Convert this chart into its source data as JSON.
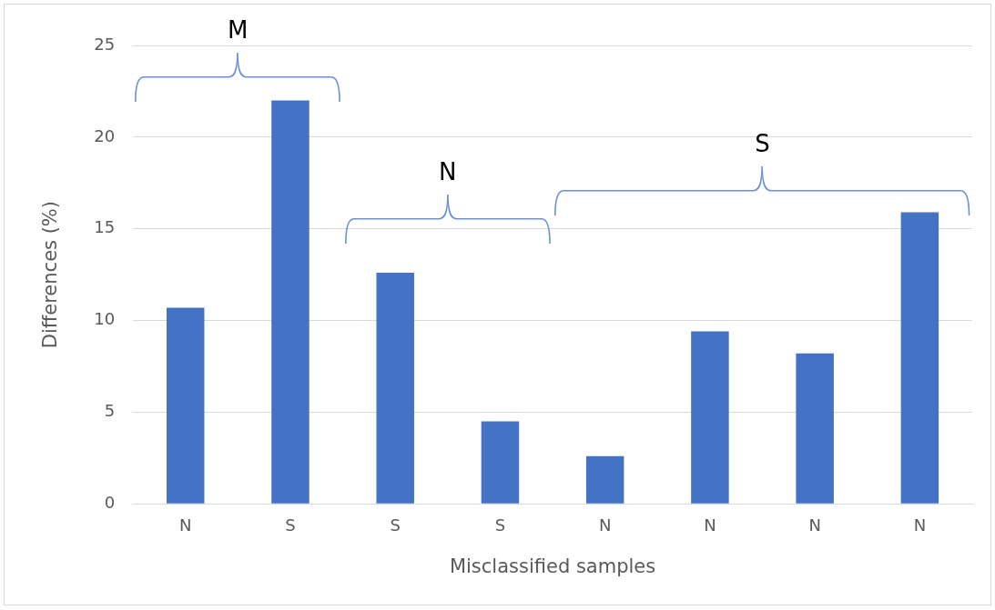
{
  "chart_data": {
    "type": "bar",
    "xlabel": "Misclassified samples",
    "ylabel": "Differences (%)",
    "categories": [
      "N",
      "S",
      "S",
      "S",
      "N",
      "N",
      "N",
      "N"
    ],
    "values": [
      10.7,
      22.0,
      12.6,
      4.5,
      2.6,
      9.4,
      8.2,
      15.9
    ],
    "color": "#4472c4",
    "ylim": [
      0,
      25
    ],
    "yticks": [
      0,
      5,
      10,
      15,
      20,
      25
    ],
    "grid": "y",
    "legend": false,
    "annotations": [
      "M",
      "N",
      "S"
    ]
  }
}
